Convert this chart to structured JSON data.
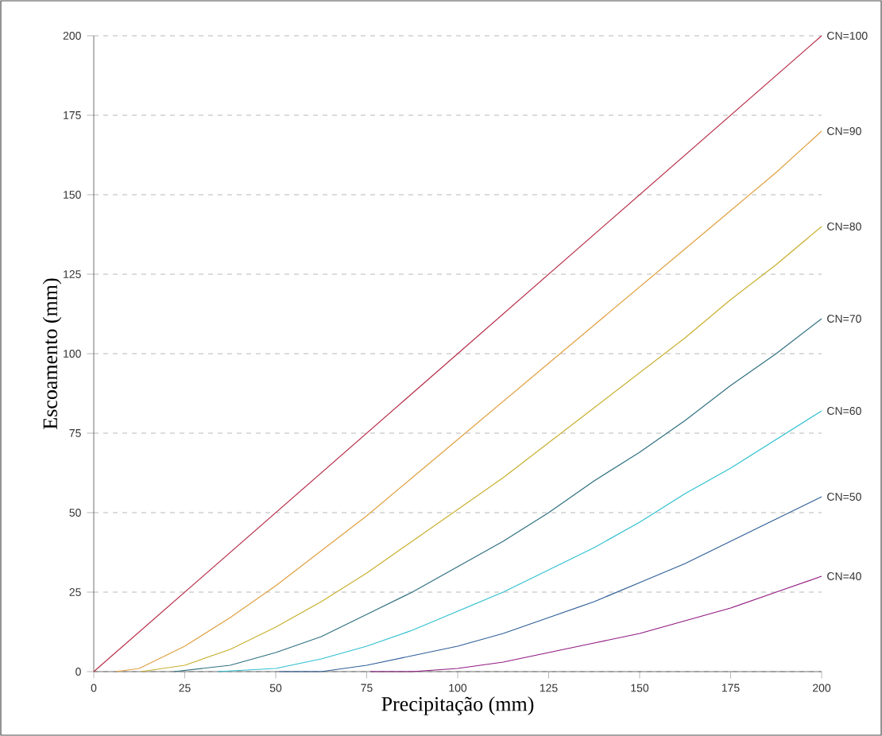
{
  "chart_data": {
    "type": "line",
    "xlabel": "Precipitação (mm)",
    "ylabel": "Escoamento (mm)",
    "xlim": [
      0,
      200
    ],
    "ylim": [
      0,
      200
    ],
    "xticks": [
      0,
      25,
      50,
      75,
      100,
      125,
      150,
      175,
      200
    ],
    "yticks": [
      0,
      25,
      50,
      75,
      100,
      125,
      150,
      175,
      200
    ],
    "grid": "y",
    "series": [
      {
        "name": "CN=100",
        "color": "#b8304a",
        "x": [
          0,
          200
        ],
        "values": [
          0,
          200
        ]
      },
      {
        "name": "CN=90",
        "color": "#e0a040",
        "x": [
          6,
          12.5,
          25,
          37.5,
          50,
          62.5,
          75,
          87.5,
          100,
          112.5,
          125,
          137.5,
          150,
          162.5,
          175,
          187.5,
          200
        ],
        "values": [
          0,
          1,
          8,
          17,
          27,
          38,
          49,
          61,
          73,
          85,
          97,
          109,
          121,
          133,
          145,
          157,
          170
        ]
      },
      {
        "name": "CN=80",
        "color": "#c8b030",
        "x": [
          13,
          25,
          37.5,
          50,
          62.5,
          75,
          87.5,
          100,
          112.5,
          125,
          137.5,
          150,
          162.5,
          175,
          187.5,
          200
        ],
        "values": [
          0,
          2,
          7,
          14,
          22,
          31,
          41,
          51,
          61,
          72,
          83,
          94,
          105,
          117,
          128,
          140
        ]
      },
      {
        "name": "CN=70",
        "color": "#2f7080",
        "x": [
          22,
          37.5,
          50,
          62.5,
          75,
          87.5,
          100,
          112.5,
          125,
          137.5,
          150,
          162.5,
          175,
          187.5,
          200
        ],
        "values": [
          0,
          2,
          6,
          11,
          18,
          25,
          33,
          41,
          50,
          60,
          69,
          79,
          90,
          100,
          111
        ]
      },
      {
        "name": "CN=60",
        "color": "#30c0d0",
        "x": [
          34,
          50,
          62.5,
          75,
          87.5,
          100,
          112.5,
          125,
          137.5,
          150,
          162.5,
          175,
          187.5,
          200
        ],
        "values": [
          0,
          1,
          4,
          8,
          13,
          19,
          25,
          32,
          39,
          47,
          56,
          64,
          73,
          82
        ]
      },
      {
        "name": "CN=50",
        "color": "#2f5f98",
        "x": [
          51,
          62.5,
          75,
          87.5,
          100,
          112.5,
          125,
          137.5,
          150,
          162.5,
          175,
          187.5,
          200
        ],
        "values": [
          0,
          0,
          2,
          5,
          8,
          12,
          17,
          22,
          28,
          34,
          41,
          48,
          55
        ]
      },
      {
        "name": "CN=40",
        "color": "#901880",
        "x": [
          76,
          87.5,
          100,
          112.5,
          125,
          137.5,
          150,
          162.5,
          175,
          187.5,
          200
        ],
        "values": [
          0,
          0,
          1,
          3,
          6,
          9,
          12,
          16,
          20,
          25,
          30
        ]
      }
    ]
  }
}
